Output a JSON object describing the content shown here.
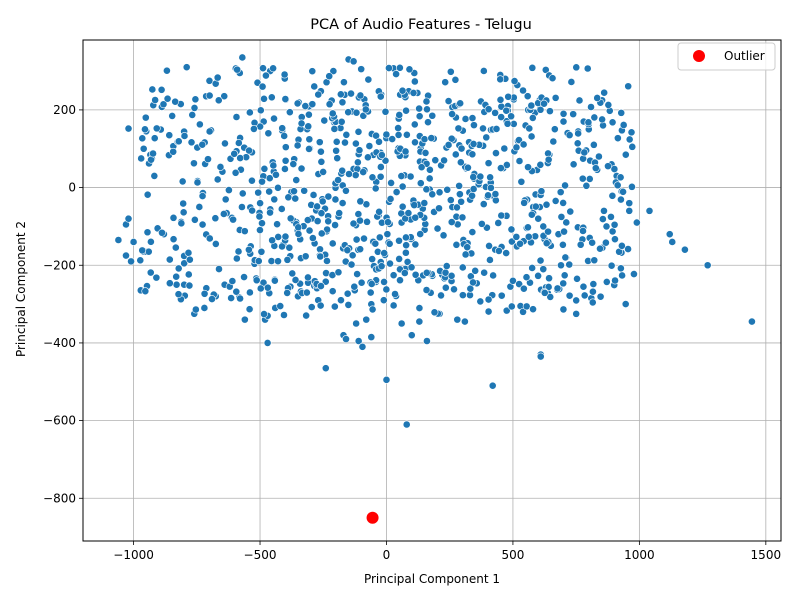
{
  "chart_data": {
    "type": "scatter",
    "title": "PCA of Audio Features - Telugu",
    "xlabel": "Principal Component 1",
    "ylabel": "Principal Component 2",
    "xlim": [
      -1200,
      1560
    ],
    "ylim": [
      -910,
      380
    ],
    "xticks": [
      -1000,
      -500,
      0,
      500,
      1000,
      1500
    ],
    "yticks": [
      -800,
      -600,
      -400,
      -200,
      0,
      200
    ],
    "xtick_labels": [
      "−1000",
      "−500",
      "0",
      "500",
      "1000",
      "1500"
    ],
    "ytick_labels": [
      "−800",
      "−600",
      "−400",
      "−200",
      "0",
      "200"
    ],
    "grid": true,
    "legend": {
      "position": "top-right",
      "entries": [
        "Outlier"
      ]
    },
    "colors": {
      "points": "#1f77b4",
      "outlier": "#ff0000",
      "grid": "#b0b0b0"
    },
    "series": [
      {
        "name": "",
        "color": "#1f77b4",
        "note_distribution": "approx 1500 points; dense cloud x in [-1000,1000], y in [-350,330]",
        "points": [
          [
            -1060,
            -135
          ],
          [
            -1030,
            -95
          ],
          [
            -1020,
            -80
          ],
          [
            -1030,
            -175
          ],
          [
            -1010,
            -190
          ],
          [
            -1020,
            152
          ],
          [
            -1000,
            -140
          ],
          [
            -960,
            -165
          ],
          [
            -950,
            -165
          ],
          [
            -970,
            75
          ],
          [
            -960,
            100
          ],
          [
            -950,
            145
          ],
          [
            -955,
            150
          ],
          [
            -945,
            -115
          ],
          [
            -940,
            -165
          ],
          [
            -905,
            -105
          ],
          [
            -880,
            -120
          ],
          [
            -830,
            -250
          ],
          [
            -800,
            -250
          ],
          [
            -800,
            -195
          ],
          [
            -790,
            310
          ],
          [
            -760,
            -325
          ],
          [
            -720,
            -310
          ],
          [
            -700,
            275
          ],
          [
            -675,
            -280
          ],
          [
            -640,
            -250
          ],
          [
            -620,
            -255
          ],
          [
            -570,
            335
          ],
          [
            -580,
            295
          ],
          [
            -560,
            -340
          ],
          [
            -540,
            -270
          ],
          [
            -510,
            270
          ],
          [
            -490,
            260
          ],
          [
            -460,
            300
          ],
          [
            -470,
            -400
          ],
          [
            -480,
            -340
          ],
          [
            -470,
            -330
          ],
          [
            -440,
            -310
          ],
          [
            -420,
            -305
          ],
          [
            -380,
            -255
          ],
          [
            -350,
            -280
          ],
          [
            -310,
            -245
          ],
          [
            -270,
            -290
          ],
          [
            -240,
            -465
          ],
          [
            -210,
            300
          ],
          [
            -180,
            -290
          ],
          [
            -170,
            -380
          ],
          [
            -160,
            -390
          ],
          [
            -150,
            330
          ],
          [
            -130,
            325
          ],
          [
            -120,
            -350
          ],
          [
            -110,
            -395
          ],
          [
            -100,
            305
          ],
          [
            -95,
            -410
          ],
          [
            -80,
            -340
          ],
          [
            -60,
            -385
          ],
          [
            0,
            -495
          ],
          [
            80,
            -610
          ],
          [
            60,
            -350
          ],
          [
            100,
            -380
          ],
          [
            130,
            -345
          ],
          [
            160,
            -395
          ],
          [
            110,
            295
          ],
          [
            210,
            -325
          ],
          [
            310,
            -345
          ],
          [
            280,
            -340
          ],
          [
            420,
            -510
          ],
          [
            490,
            -255
          ],
          [
            530,
            -305
          ],
          [
            540,
            -320
          ],
          [
            610,
            -430
          ],
          [
            610,
            -435
          ],
          [
            620,
            -210
          ],
          [
            810,
            -285
          ],
          [
            1120,
            -120
          ],
          [
            1130,
            -140
          ],
          [
            1180,
            -160
          ],
          [
            1270,
            -200
          ],
          [
            1445,
            -345
          ],
          [
            1040,
            -60
          ],
          [
            990,
            -90
          ],
          [
            960,
            -60
          ],
          [
            960,
            -40
          ],
          [
            930,
            -10
          ],
          [
            910,
            30
          ],
          [
            890,
            60
          ],
          [
            870,
            -100
          ],
          [
            860,
            -60
          ],
          [
            840,
            80
          ],
          [
            820,
            110
          ],
          [
            800,
            150
          ],
          [
            780,
            170
          ],
          [
            760,
            95
          ],
          [
            740,
            60
          ],
          [
            700,
            170
          ],
          [
            710,
            -180
          ],
          [
            690,
            -200
          ],
          [
            680,
            -120
          ],
          [
            650,
            -150
          ],
          [
            640,
            -140
          ],
          [
            620,
            -100
          ],
          [
            600,
            -80
          ],
          [
            580,
            -50
          ],
          [
            560,
            200
          ],
          [
            550,
            160
          ],
          [
            540,
            250
          ],
          [
            520,
            120
          ],
          [
            500,
            -240
          ],
          [
            480,
            210
          ],
          [
            470,
            280
          ],
          [
            450,
            290
          ],
          [
            430,
            -160
          ]
        ]
      },
      {
        "name": "Outlier",
        "color": "#ff0000",
        "points": [
          [
            -55,
            -850
          ]
        ]
      }
    ]
  }
}
